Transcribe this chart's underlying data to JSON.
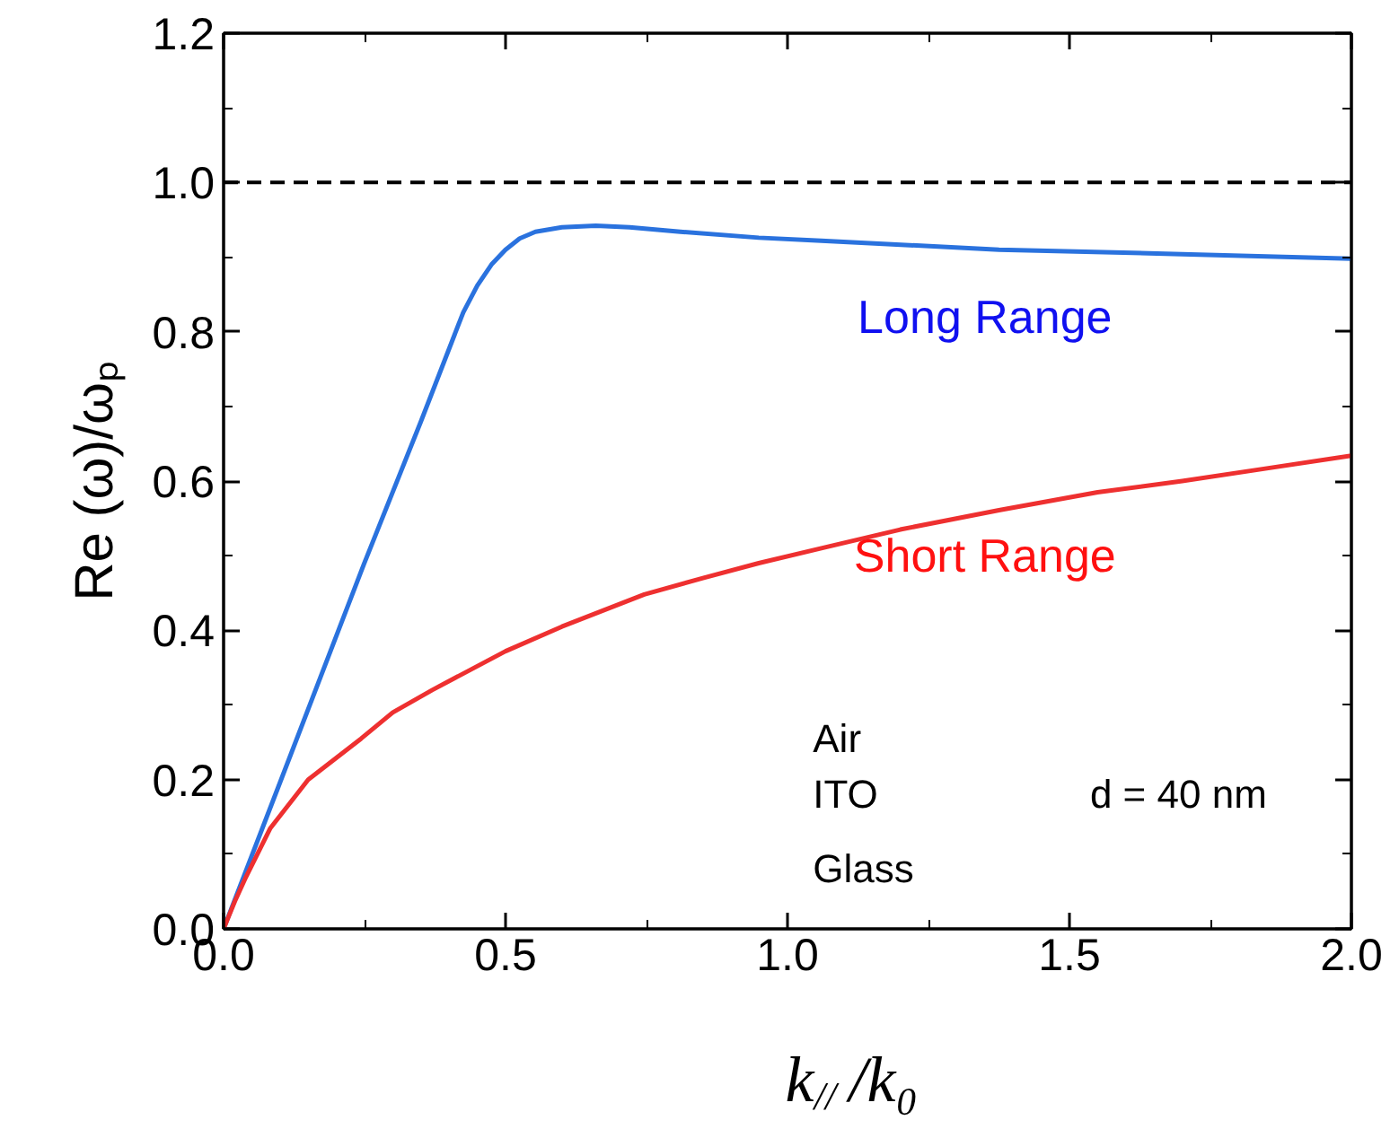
{
  "chart_data": {
    "type": "line",
    "xlabel": "k$_{//}$/k₀",
    "ylabel": "Re (ω)/ωₚ",
    "xlim": [
      0,
      2.0
    ],
    "ylim": [
      0,
      1.2
    ],
    "xticks": [
      {
        "value": 0,
        "label": "0.0"
      },
      {
        "value": 0.5,
        "label": "0.5"
      },
      {
        "value": 1.0,
        "label": "1.0"
      },
      {
        "value": 1.5,
        "label": "1.5"
      },
      {
        "value": 2.0,
        "label": "2.0"
      }
    ],
    "yticks": [
      {
        "value": 0,
        "label": "0.0"
      },
      {
        "value": 0.2,
        "label": "0.2"
      },
      {
        "value": 0.4,
        "label": "0.4"
      },
      {
        "value": 0.6,
        "label": "0.6"
      },
      {
        "value": 0.8,
        "label": "0.8"
      },
      {
        "value": 1.0,
        "label": "1.0"
      },
      {
        "value": 1.2,
        "label": "1.2"
      }
    ],
    "grid": false,
    "marker": "none",
    "line_style": "solid",
    "series": [
      {
        "name": "Long Range",
        "color": "#2a72de",
        "x": [
          0,
          0.1,
          0.249,
          0.35,
          0.425,
          0.45,
          0.475,
          0.5,
          0.525,
          0.553,
          0.6,
          0.66,
          0.72,
          0.81,
          0.949,
          1.06,
          1.375,
          1.7,
          2.0
        ],
        "values": [
          0,
          0.196,
          0.489,
          0.68,
          0.826,
          0.862,
          0.89,
          0.91,
          0.925,
          0.934,
          0.94,
          0.942,
          0.94,
          0.934,
          0.926,
          0.922,
          0.91,
          0.904,
          0.898
        ]
      },
      {
        "name": "Short Range",
        "color": "#ee3030",
        "x": [
          0,
          0.02,
          0.04,
          0.083,
          0.15,
          0.244,
          0.3,
          0.37,
          0.5,
          0.6,
          0.746,
          0.85,
          0.949,
          1.06,
          1.2,
          1.375,
          1.55,
          1.7,
          1.85,
          2.0
        ],
        "values": [
          0,
          0.037,
          0.07,
          0.135,
          0.2,
          0.255,
          0.29,
          0.32,
          0.372,
          0.405,
          0.448,
          0.47,
          0.49,
          0.51,
          0.535,
          0.561,
          0.585,
          0.6,
          0.617,
          0.634
        ]
      }
    ],
    "ref_lines": [
      {
        "axis": "y",
        "value": 1.0,
        "color": "#000000",
        "line_style": "dashed"
      }
    ],
    "annotations": [
      "Air",
      "ITO",
      "d = 40 nm",
      "Glass"
    ]
  }
}
